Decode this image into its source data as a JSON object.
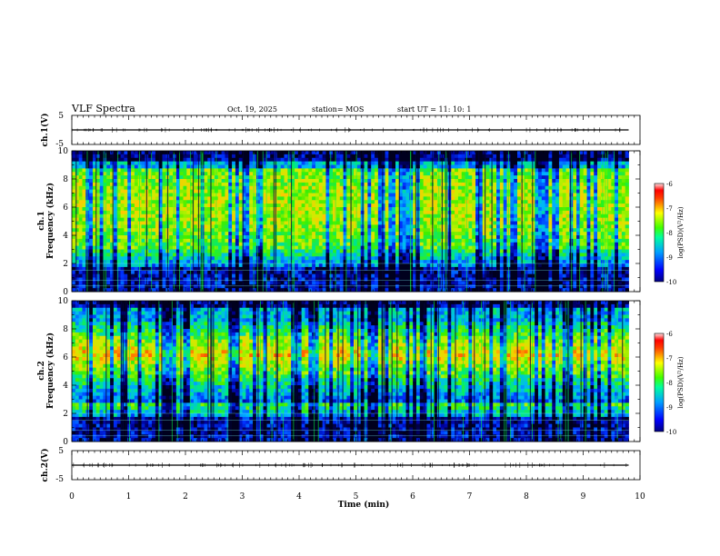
{
  "header": {
    "title": "VLF Spectra",
    "date": "Oct. 19, 2025",
    "station": "station= MOS",
    "start_ut": "start  UT  =   11: 10: 1"
  },
  "chart_data": [
    {
      "type": "line",
      "name": "waveform-ch1",
      "ylabel": "ch.1(V)",
      "ylim": [
        -5,
        5
      ],
      "yticks": [
        "5",
        "-5"
      ],
      "xlim": [
        0,
        10
      ],
      "x": [
        0,
        9.8
      ],
      "values": [
        0,
        0
      ]
    },
    {
      "type": "heatmap",
      "name": "spectrogram-ch1",
      "ylabel_lines": [
        "ch.1",
        "Frequency  (kHz)"
      ],
      "ylim": [
        0,
        10
      ],
      "yticks": [
        "0",
        "2",
        "4",
        "6",
        "8",
        "10"
      ],
      "xlim": [
        0,
        10
      ],
      "data_extent_min": 9.8,
      "colorbar": {
        "label": "log(PSD)(V²/Hz)",
        "range": [
          -10,
          -6
        ],
        "ticks": [
          "-6",
          "-7",
          "-8",
          "-9",
          "-10"
        ]
      }
    },
    {
      "type": "heatmap",
      "name": "spectrogram-ch2",
      "ylabel_lines": [
        "ch.2",
        "Frequency  (kHz)"
      ],
      "ylim": [
        0,
        10
      ],
      "yticks": [
        "0",
        "2",
        "4",
        "6",
        "8",
        "10"
      ],
      "xlim": [
        0,
        10
      ],
      "data_extent_min": 9.8,
      "colorbar": {
        "label": "log(PSD)(V²/Hz)",
        "range": [
          -10,
          -6
        ],
        "ticks": [
          "-6",
          "-7",
          "-8",
          "-9",
          "-10"
        ]
      }
    },
    {
      "type": "line",
      "name": "waveform-ch2",
      "ylabel": "ch.2(V)",
      "ylim": [
        -5,
        5
      ],
      "yticks": [
        "5",
        "-5"
      ],
      "xlim": [
        0,
        10
      ],
      "x": [
        0,
        9.8
      ],
      "values": [
        0,
        0
      ]
    }
  ],
  "xaxis": {
    "label": "Time  (min)",
    "ticks": [
      "0",
      "1",
      "2",
      "3",
      "4",
      "5",
      "6",
      "7",
      "8",
      "9",
      "10"
    ]
  }
}
